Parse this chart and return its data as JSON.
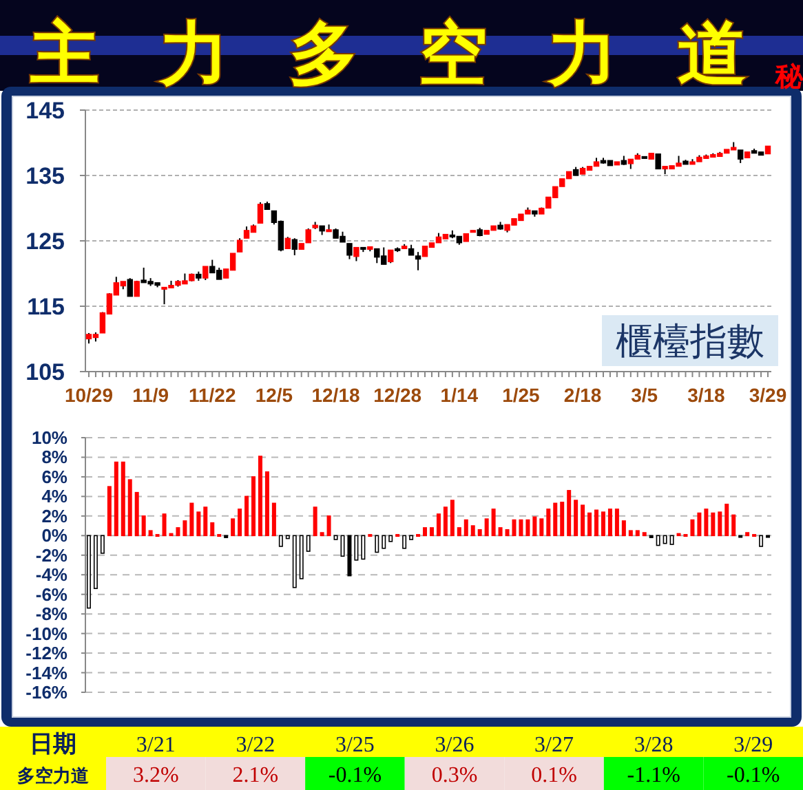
{
  "chart_data": [
    {
      "type": "candlestick",
      "title": "主力多空力道",
      "annotations": [
        "秘",
        "櫃檯指數"
      ],
      "ylim": [
        105,
        145
      ],
      "yticks": [
        105,
        115,
        125,
        135,
        145
      ],
      "grid": "y",
      "categories": [
        "10/29",
        null,
        null,
        null,
        null,
        null,
        null,
        null,
        null,
        "11/9",
        null,
        null,
        null,
        null,
        null,
        null,
        null,
        null,
        "11/22",
        null,
        null,
        null,
        null,
        null,
        null,
        null,
        null,
        "12/5",
        null,
        null,
        null,
        null,
        null,
        null,
        null,
        null,
        "12/18",
        null,
        null,
        null,
        null,
        null,
        null,
        null,
        null,
        "12/28",
        null,
        null,
        null,
        null,
        null,
        null,
        null,
        null,
        "1/14",
        null,
        null,
        null,
        null,
        null,
        null,
        null,
        null,
        "1/25",
        null,
        null,
        null,
        null,
        null,
        null,
        null,
        null,
        "2/18",
        null,
        null,
        null,
        null,
        null,
        null,
        null,
        null,
        "3/5",
        null,
        null,
        null,
        null,
        null,
        null,
        null,
        null,
        "3/18",
        null,
        null,
        null,
        null,
        null,
        null,
        null,
        null,
        "3/29"
      ],
      "ohlc": [
        [
          110.0,
          110.9,
          109.3,
          110.7
        ],
        [
          110.2,
          111.0,
          109.6,
          110.7
        ],
        [
          110.9,
          114.1,
          110.9,
          114.0
        ],
        [
          113.8,
          117.0,
          113.8,
          116.9
        ],
        [
          116.7,
          119.5,
          116.7,
          118.6
        ],
        [
          118.1,
          118.8,
          117.6,
          118.8
        ],
        [
          119.1,
          119.3,
          116.5,
          116.5
        ],
        [
          116.5,
          118.9,
          116.5,
          118.8
        ],
        [
          119.0,
          120.9,
          118.6,
          118.6
        ],
        [
          118.8,
          119.3,
          118.1,
          118.4
        ],
        [
          118.6,
          118.6,
          117.9,
          118.2
        ],
        [
          117.6,
          117.9,
          115.3,
          117.9
        ],
        [
          117.8,
          118.9,
          117.8,
          118.2
        ],
        [
          118.2,
          119.0,
          118.0,
          118.8
        ],
        [
          118.4,
          120.0,
          118.4,
          118.9
        ],
        [
          118.9,
          120.0,
          118.8,
          119.9
        ],
        [
          119.9,
          120.3,
          118.9,
          119.3
        ],
        [
          119.3,
          121.1,
          119.0,
          121.1
        ],
        [
          121.1,
          122.1,
          120.1,
          120.1
        ],
        [
          120.5,
          120.9,
          119.1,
          119.1
        ],
        [
          119.3,
          120.7,
          119.3,
          120.7
        ],
        [
          120.5,
          123.1,
          120.5,
          123.1
        ],
        [
          123.3,
          125.4,
          123.3,
          125.1
        ],
        [
          125.4,
          127.2,
          125.4,
          126.6
        ],
        [
          126.3,
          127.5,
          126.3,
          127.3
        ],
        [
          127.7,
          130.9,
          127.7,
          130.6
        ],
        [
          130.7,
          131.0,
          129.8,
          129.8
        ],
        [
          129.6,
          129.6,
          127.5,
          127.8
        ],
        [
          128.0,
          128.1,
          123.4,
          123.6
        ],
        [
          123.8,
          125.6,
          123.8,
          125.4
        ],
        [
          125.2,
          125.4,
          122.8,
          123.7
        ],
        [
          123.7,
          124.6,
          123.7,
          124.6
        ],
        [
          124.7,
          126.9,
          124.7,
          126.7
        ],
        [
          127.0,
          127.9,
          126.8,
          127.4
        ],
        [
          127.3,
          127.3,
          125.9,
          126.5
        ],
        [
          126.4,
          127.5,
          126.4,
          126.7
        ],
        [
          126.7,
          126.9,
          125.4,
          125.4
        ],
        [
          125.7,
          126.4,
          124.8,
          124.8
        ],
        [
          124.6,
          124.6,
          122.2,
          122.8
        ],
        [
          122.6,
          124.0,
          121.9,
          124.0
        ],
        [
          124.0,
          124.0,
          123.3,
          123.7
        ],
        [
          123.7,
          124.1,
          123.4,
          124.1
        ],
        [
          123.8,
          123.8,
          121.6,
          122.5
        ],
        [
          122.7,
          124.0,
          121.4,
          121.4
        ],
        [
          121.8,
          123.6,
          121.6,
          123.6
        ],
        [
          123.8,
          124.0,
          123.3,
          123.5
        ],
        [
          123.8,
          124.5,
          123.8,
          124.2
        ],
        [
          123.8,
          124.4,
          122.8,
          122.8
        ],
        [
          122.7,
          123.3,
          120.5,
          122.2
        ],
        [
          122.6,
          124.2,
          122.6,
          124.2
        ],
        [
          124.0,
          124.7,
          124.0,
          124.7
        ],
        [
          124.7,
          126.2,
          124.7,
          125.6
        ],
        [
          125.3,
          126.0,
          125.3,
          126.0
        ],
        [
          125.9,
          126.6,
          125.4,
          125.6
        ],
        [
          125.7,
          125.7,
          124.4,
          124.7
        ],
        [
          124.9,
          126.1,
          124.9,
          126.1
        ],
        [
          126.3,
          126.6,
          126.3,
          126.6
        ],
        [
          126.7,
          127.0,
          125.7,
          125.8
        ],
        [
          126.0,
          126.6,
          126.0,
          126.6
        ],
        [
          126.6,
          127.3,
          126.6,
          127.3
        ],
        [
          127.4,
          127.9,
          126.7,
          126.8
        ],
        [
          126.6,
          127.5,
          126.3,
          127.5
        ],
        [
          127.4,
          128.4,
          127.4,
          128.4
        ],
        [
          128.1,
          129.1,
          128.1,
          129.1
        ],
        [
          129.1,
          130.1,
          129.1,
          129.7
        ],
        [
          129.6,
          129.6,
          128.7,
          129.1
        ],
        [
          129.1,
          130.1,
          129.1,
          130.0
        ],
        [
          130.0,
          131.7,
          130.0,
          131.7
        ],
        [
          131.6,
          133.3,
          131.6,
          133.3
        ],
        [
          133.3,
          134.5,
          133.3,
          134.5
        ],
        [
          134.5,
          135.6,
          134.5,
          135.6
        ],
        [
          135.9,
          136.3,
          135.0,
          135.0
        ],
        [
          135.2,
          136.3,
          135.2,
          136.1
        ],
        [
          135.8,
          136.4,
          135.8,
          136.4
        ],
        [
          136.4,
          137.7,
          136.4,
          137.1
        ],
        [
          137.3,
          137.7,
          136.8,
          136.9
        ],
        [
          137.3,
          137.3,
          136.5,
          136.5
        ],
        [
          136.6,
          137.1,
          136.6,
          137.1
        ],
        [
          137.3,
          138.0,
          136.6,
          136.7
        ],
        [
          136.8,
          137.5,
          136.0,
          137.5
        ],
        [
          137.5,
          138.4,
          137.5,
          138.1
        ],
        [
          137.9,
          137.9,
          137.6,
          137.6
        ],
        [
          137.5,
          138.4,
          137.5,
          138.4
        ],
        [
          138.3,
          138.3,
          136.0,
          136.0
        ],
        [
          136.0,
          136.4,
          135.2,
          136.4
        ],
        [
          136.0,
          136.5,
          136.0,
          136.5
        ],
        [
          136.4,
          138.0,
          136.4,
          136.9
        ],
        [
          137.2,
          137.4,
          136.7,
          136.7
        ],
        [
          136.7,
          137.5,
          136.7,
          137.1
        ],
        [
          137.1,
          138.1,
          137.1,
          137.8
        ],
        [
          137.6,
          138.2,
          137.6,
          138.0
        ],
        [
          137.8,
          138.4,
          137.8,
          138.2
        ],
        [
          137.9,
          138.6,
          137.9,
          138.4
        ],
        [
          138.4,
          139.0,
          138.4,
          139.0
        ],
        [
          138.9,
          140.1,
          138.9,
          139.3
        ],
        [
          138.9,
          138.9,
          136.9,
          137.5
        ],
        [
          137.7,
          138.6,
          137.7,
          138.6
        ],
        [
          138.8,
          139.1,
          138.4,
          138.4
        ],
        [
          138.6,
          138.6,
          138.1,
          138.1
        ],
        [
          138.3,
          139.5,
          138.3,
          139.5
        ]
      ],
      "colors": [
        "#ff0000",
        "#ff0000",
        "#ff0000",
        "#ff0000",
        "#ff0000",
        "#ff0000",
        "#000000",
        "#ff0000",
        "#000000",
        "#000000",
        "#000000",
        "#ff0000",
        "#ff0000",
        "#ff0000",
        "#ff0000",
        "#ff0000",
        "#000000",
        "#ff0000",
        "#000000",
        "#000000",
        "#ff0000",
        "#ff0000",
        "#ff0000",
        "#ff0000",
        "#ff0000",
        "#ff0000",
        "#000000",
        "#000000",
        "#000000",
        "#ff0000",
        "#000000",
        "#ff0000",
        "#ff0000",
        "#ff0000",
        "#000000",
        "#ff0000",
        "#000000",
        "#000000",
        "#000000",
        "#ff0000",
        "#000000",
        "#ff0000",
        "#000000",
        "#000000",
        "#ff0000",
        "#000000",
        "#ff0000",
        "#000000",
        "#000000",
        "#ff0000",
        "#ff0000",
        "#ff0000",
        "#ff0000",
        "#000000",
        "#000000",
        "#ff0000",
        "#ff0000",
        "#000000",
        "#ff0000",
        "#ff0000",
        "#000000",
        "#ff0000",
        "#ff0000",
        "#ff0000",
        "#ff0000",
        "#000000",
        "#ff0000",
        "#ff0000",
        "#ff0000",
        "#ff0000",
        "#ff0000",
        "#000000",
        "#ff0000",
        "#ff0000",
        "#ff0000",
        "#000000",
        "#000000",
        "#ff0000",
        "#000000",
        "#ff0000",
        "#ff0000",
        "#000000",
        "#ff0000",
        "#000000",
        "#ff0000",
        "#ff0000",
        "#ff0000",
        "#000000",
        "#ff0000",
        "#ff0000",
        "#ff0000",
        "#ff0000",
        "#ff0000",
        "#ff0000",
        "#ff0000",
        "#000000",
        "#ff0000",
        "#000000",
        "#000000",
        "#ff0000"
      ]
    },
    {
      "type": "bar",
      "tick_labels": "y",
      "grid": "y",
      "ylim": [
        -16,
        10
      ],
      "yticks": [
        {
          "value": -16,
          "label": "-16%"
        },
        {
          "value": -14,
          "label": "-14%"
        },
        {
          "value": -12,
          "label": "-12%"
        },
        {
          "value": -10,
          "label": "-10%"
        },
        {
          "value": -8,
          "label": "-8%"
        },
        {
          "value": -6,
          "label": "-6%"
        },
        {
          "value": -4,
          "label": "-4%"
        },
        {
          "value": -2,
          "label": "-2%"
        },
        {
          "value": 0,
          "label": "0%"
        },
        {
          "value": 2,
          "label": "2%"
        },
        {
          "value": 4,
          "label": "4%"
        },
        {
          "value": 6,
          "label": "6%"
        },
        {
          "value": 8,
          "label": "8%"
        },
        {
          "value": 10,
          "label": "10%"
        }
      ],
      "categories": [
        null,
        null,
        null,
        null,
        null,
        null,
        null,
        null,
        null,
        null,
        null,
        null,
        null,
        null,
        null,
        null,
        null,
        null,
        null,
        null,
        null,
        null,
        null,
        null,
        null,
        null,
        null,
        null,
        null,
        null,
        null,
        null,
        null,
        null,
        null,
        null,
        null,
        null,
        null,
        null,
        null,
        null,
        null,
        null,
        null,
        null,
        null,
        null,
        null,
        null,
        null,
        null,
        null,
        null,
        null,
        null,
        null,
        null,
        null,
        null,
        null,
        null,
        null,
        null,
        null,
        null,
        null,
        null,
        null,
        null,
        null,
        null,
        null,
        null,
        null,
        null,
        null,
        null,
        null,
        null,
        null,
        null,
        null,
        null,
        null,
        null,
        null,
        null,
        null,
        null,
        null,
        null,
        null,
        null,
        null,
        null,
        null,
        null,
        null,
        null
      ],
      "values": [
        -7.4,
        -5.4,
        -1.8,
        5.0,
        7.5,
        7.5,
        5.7,
        4.4,
        2.0,
        0.5,
        0.1,
        2.2,
        0.2,
        0.8,
        1.5,
        3.3,
        2.4,
        2.9,
        1.3,
        0.1,
        -0.2,
        1.7,
        2.7,
        4.0,
        6.0,
        8.1,
        6.5,
        3.3,
        -1.1,
        -0.3,
        -5.3,
        -4.4,
        -1.6,
        2.9,
        0.3,
        2.0,
        -0.4,
        -2.1,
        -4.1,
        -2.5,
        -2.4,
        0.1,
        -1.7,
        -1.3,
        -0.6,
        0.1,
        -1.3,
        -0.4,
        0.1,
        0.8,
        0.8,
        2.2,
        2.9,
        3.6,
        0.8,
        1.6,
        1.0,
        0.6,
        1.7,
        2.7,
        0.8,
        0.6,
        1.6,
        1.6,
        1.6,
        1.9,
        1.7,
        2.7,
        3.3,
        3.4,
        4.6,
        3.6,
        3.1,
        2.3,
        2.6,
        2.4,
        2.7,
        2.7,
        1.5,
        0.5,
        0.5,
        0.3,
        -0.2,
        -1.0,
        -0.8,
        -0.9,
        0.2,
        0.1,
        1.6,
        2.3,
        2.7,
        2.3,
        2.4,
        3.2,
        2.1,
        -0.1,
        0.3,
        0.1,
        -1.1,
        -0.1
      ],
      "colors": [
        "#ffffff",
        "#ffffff",
        "#ffffff",
        "#ff0000",
        "#ff0000",
        "#ff0000",
        "#ff0000",
        "#ff0000",
        "#ff0000",
        "#ff0000",
        "#ff0000",
        "#ff0000",
        "#ff0000",
        "#ff0000",
        "#ff0000",
        "#ff0000",
        "#ff0000",
        "#ff0000",
        "#ff0000",
        "#ff0000",
        "#000000",
        "#ff0000",
        "#ff0000",
        "#ff0000",
        "#ff0000",
        "#ff0000",
        "#ff0000",
        "#ff0000",
        "#ffffff",
        "#ffffff",
        "#ffffff",
        "#ffffff",
        "#ffffff",
        "#ff0000",
        "#ff0000",
        "#ff0000",
        "#ffffff",
        "#ffffff",
        "#000000",
        "#ffffff",
        "#ffffff",
        "#ff0000",
        "#ffffff",
        "#ffffff",
        "#ffffff",
        "#ff0000",
        "#ffffff",
        "#ffffff",
        "#ff0000",
        "#ff0000",
        "#ff0000",
        "#ff0000",
        "#ff0000",
        "#ff0000",
        "#ff0000",
        "#ff0000",
        "#ff0000",
        "#ff0000",
        "#ff0000",
        "#ff0000",
        "#ff0000",
        "#ff0000",
        "#ff0000",
        "#ff0000",
        "#ff0000",
        "#ff0000",
        "#ff0000",
        "#ff0000",
        "#ff0000",
        "#ff0000",
        "#ff0000",
        "#ff0000",
        "#ff0000",
        "#ff0000",
        "#ff0000",
        "#ff0000",
        "#ff0000",
        "#ff0000",
        "#ff0000",
        "#ff0000",
        "#ff0000",
        "#ff0000",
        "#000000",
        "#ffffff",
        "#ffffff",
        "#ffffff",
        "#ff0000",
        "#ff0000",
        "#ff0000",
        "#ff0000",
        "#ff0000",
        "#ff0000",
        "#ff0000",
        "#ff0000",
        "#ff0000",
        "#000000",
        "#ff0000",
        "#ff0000",
        "#ffffff",
        "#000000"
      ]
    },
    {
      "type": "other",
      "xlabel": "日期",
      "ylabel": "多空力道",
      "categories": [
        "3/21",
        "3/22",
        "3/25",
        "3/26",
        "3/27",
        "3/28",
        "3/29"
      ],
      "values": [
        3.2,
        2.1,
        -0.1,
        0.3,
        0.1,
        -1.1,
        -0.1
      ],
      "value_labels": [
        "3.2%",
        "2.1%",
        "-0.1%",
        "0.3%",
        "0.1%",
        "-1.1%",
        "-0.1%"
      ],
      "colors": [
        "#f2dcdb",
        "#f2dcdb",
        "#00ff00",
        "#f2dcdb",
        "#f2dcdb",
        "#00ff00",
        "#00ff00"
      ]
    }
  ]
}
